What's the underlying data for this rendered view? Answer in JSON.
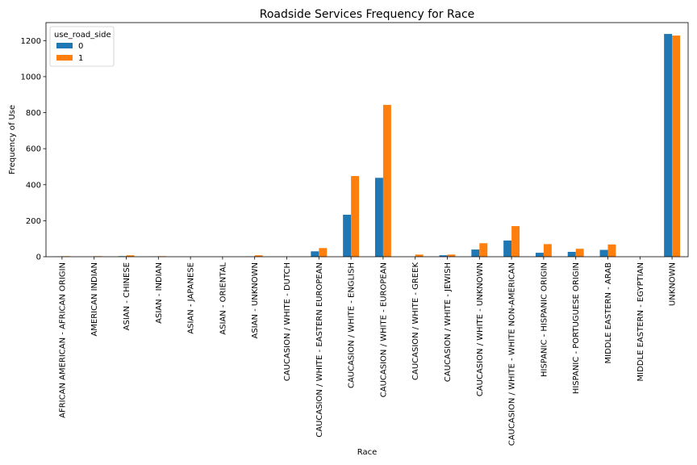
{
  "chart_data": {
    "type": "bar",
    "title": "Roadside Services Frequency for Race",
    "xlabel": "Race",
    "ylabel": "Frequency of Use",
    "ylim": [
      0,
      1300
    ],
    "yticks": [
      0,
      200,
      400,
      600,
      800,
      1000,
      1200
    ],
    "grid": false,
    "legend": {
      "title": "use_road_side",
      "position": "top-left"
    },
    "categories": [
      "AFRICAN AMERICAN - AFRICAN ORIGIN",
      "AMERICAN INDIAN",
      "ASIAN - CHINESE",
      "ASIAN - INDIAN",
      "ASIAN - JAPANESE",
      "ASIAN - ORIENTAL",
      "ASIAN - UNKNOWN",
      "CAUCASION / WHITE - DUTCH",
      "CAUCASION / WHITE - EASTERN EUROPEAN",
      "CAUCASION / WHITE - ENGLISH",
      "CAUCASION / WHITE - EUROPEAN",
      "CAUCASION / WHITE - GREEK",
      "CAUCASION / WHITE - JEWISH",
      "CAUCASION / WHITE - UNKNOWN",
      "CAUCASION / WHITE - WHITE NON-AMERICAN",
      "HISPANIC - HISPANIC ORIGIN",
      "HISPANIC - PORTUGUESE ORIGIN",
      "MIDDLE EASTERN - ARAB",
      "MIDDLE EASTERN - EGYPTIAN",
      "UNKNOWN"
    ],
    "series": [
      {
        "name": "0",
        "color": "#1f77b4",
        "values": [
          1,
          0,
          3,
          1,
          0,
          0,
          1,
          0,
          30,
          233,
          438,
          0,
          8,
          40,
          90,
          22,
          27,
          38,
          0,
          1237
        ]
      },
      {
        "name": "1",
        "color": "#ff7f0e",
        "values": [
          3,
          3,
          8,
          3,
          1,
          0,
          8,
          0,
          48,
          448,
          843,
          12,
          12,
          75,
          170,
          70,
          44,
          68,
          0,
          1228
        ]
      }
    ]
  }
}
